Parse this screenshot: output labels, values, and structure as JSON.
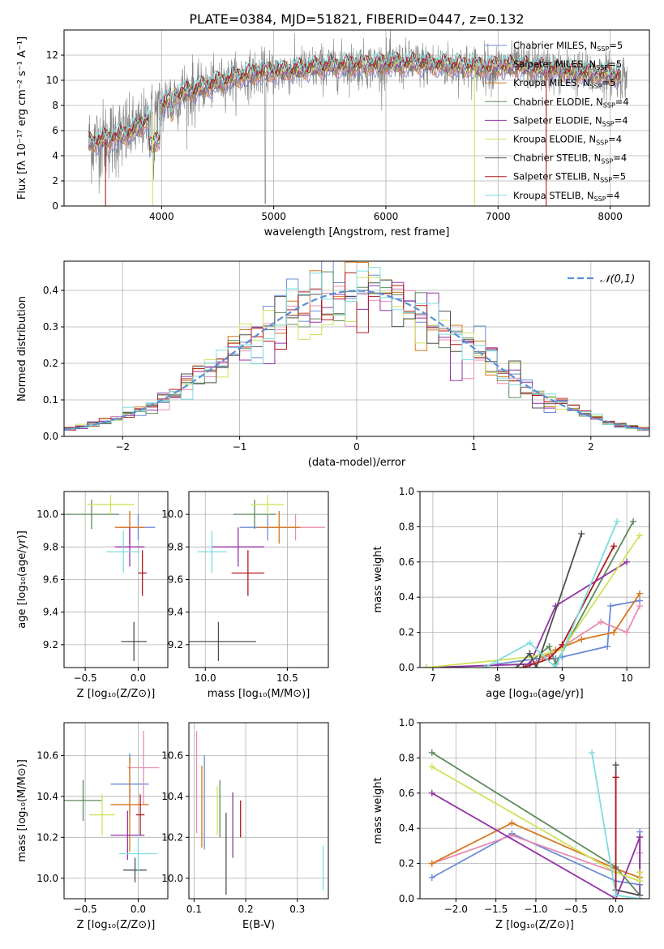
{
  "colors": {
    "chabrier_miles": "#6b8bd6",
    "salpeter_miles": "#e98cb4",
    "kroupa_miles": "#d6781e",
    "chabrier_elodie": "#5f8a5c",
    "salpeter_elodie": "#9433a8",
    "kroupa_elodie": "#cfe35a",
    "chabrier_stelib": "#505050",
    "salpeter_stelib": "#b3191e",
    "kroupa_stelib": "#7ddde0",
    "data": "#808080",
    "gauss": "#5b8fd6"
  },
  "chart_data": [
    {
      "id": "spectrum",
      "type": "line",
      "title": "PLATE=0384, MJD=51821, FIBERID=0447, z=0.132",
      "xlabel": "wavelength [Angstrom, rest frame]",
      "ylabel": "Flux [fλ 10⁻¹⁷ erg cm⁻² s⁻¹ A⁻¹]",
      "xlim": [
        3130,
        8350
      ],
      "ylim": [
        0,
        14
      ],
      "xticks": [
        "4000",
        "5000",
        "6000",
        "7000",
        "8000"
      ],
      "yticks": [
        "0",
        "2",
        "4",
        "6",
        "8",
        "10",
        "12"
      ],
      "legend_position": "right",
      "legend": [
        "Chabrier MILES, N_SSP=5",
        "Salpeter MILES, N_SSP=5",
        "Kroupa MILES, N_SSP=5",
        "Chabrier ELODIE, N_SSP=4",
        "Salpeter ELODIE, N_SSP=4",
        "Kroupa ELODIE, N_SSP=4",
        "Chabrier STELIB, N_SSP=4",
        "Salpeter STELIB, N_SSP=5",
        "Kroupa STELIB, N_SSP=4"
      ],
      "continuum": [
        [
          3350,
          5.0
        ],
        [
          3500,
          5.3
        ],
        [
          3650,
          5.6
        ],
        [
          3800,
          6.2
        ],
        [
          3950,
          7.6
        ],
        [
          4100,
          8.7
        ],
        [
          4300,
          9.2
        ],
        [
          4500,
          9.8
        ],
        [
          4700,
          10.3
        ],
        [
          4900,
          10.6
        ],
        [
          5100,
          10.7
        ],
        [
          5300,
          10.9
        ],
        [
          5500,
          11.1
        ],
        [
          5700,
          11.2
        ],
        [
          5900,
          11.2
        ],
        [
          6100,
          11.3
        ],
        [
          6300,
          11.3
        ],
        [
          6500,
          11.2
        ],
        [
          6700,
          11.1
        ],
        [
          6900,
          11.0
        ],
        [
          7100,
          11.1
        ],
        [
          7300,
          11.0
        ],
        [
          7500,
          10.8
        ],
        [
          7700,
          10.6
        ],
        [
          7900,
          10.5
        ],
        [
          8100,
          10.3
        ]
      ]
    },
    {
      "id": "residuals",
      "type": "bar",
      "xlabel": "(data-model)/error",
      "ylabel": "Normed distribution",
      "xlim": [
        -2.5,
        2.5
      ],
      "ylim": [
        0,
        0.48
      ],
      "xticks": [
        "−2",
        "−1",
        "0",
        "1",
        "2"
      ],
      "yticks": [
        "0.0",
        "0.1",
        "0.2",
        "0.3",
        "0.4"
      ],
      "legend": [
        "𝒩(0,1)"
      ],
      "legend_position": "top-right",
      "bin_width": 0.1
    },
    {
      "id": "age_vs_Z",
      "type": "scatter",
      "xlabel": "Z [log₁₀(Z/Z⊙)]",
      "ylabel": "age [log₁₀(age/yr)]",
      "xlim": [
        -0.7,
        0.28
      ],
      "ylim": [
        9.06,
        10.14
      ],
      "xticks": [
        "−0.5",
        "0.0"
      ],
      "yticks": [
        "9.2",
        "9.4",
        "9.6",
        "9.8",
        "10.0"
      ],
      "points": [
        {
          "x": -0.0,
          "y": 9.92,
          "xe": 0.16,
          "ye": 0.08
        },
        {
          "x": -0.08,
          "y": 9.92,
          "xe": 0.1,
          "ye": 0.1
        },
        {
          "x": -0.08,
          "y": 9.92,
          "xe": 0.14,
          "ye": 0.1
        },
        {
          "x": -0.44,
          "y": 10.0,
          "xe": 0.26,
          "ye": 0.09
        },
        {
          "x": -0.08,
          "y": 9.8,
          "xe": 0.14,
          "ye": 0.12
        },
        {
          "x": -0.26,
          "y": 10.06,
          "xe": 0.22,
          "ye": 0.06
        },
        {
          "x": -0.04,
          "y": 9.22,
          "xe": 0.12,
          "ye": 0.12
        },
        {
          "x": 0.04,
          "y": 9.64,
          "xe": 0.04,
          "ye": 0.14
        },
        {
          "x": -0.14,
          "y": 9.77,
          "xe": 0.16,
          "ye": 0.13
        }
      ]
    },
    {
      "id": "age_vs_mass",
      "type": "scatter",
      "xlabel": "mass [log₁₀(M/M⊙)]",
      "ylabel": "",
      "xlim": [
        9.9,
        10.75
      ],
      "ylim": [
        9.06,
        10.14
      ],
      "xticks": [
        "10.0",
        "10.5"
      ],
      "yticks": [
        "9.2",
        "9.4",
        "9.6",
        "9.8",
        "10.0"
      ],
      "points": [
        {
          "x": 10.38,
          "y": 9.92,
          "xe": 0.17,
          "ye": 0.08
        },
        {
          "x": 10.55,
          "y": 9.92,
          "xe": 0.18,
          "ye": 0.08
        },
        {
          "x": 10.45,
          "y": 9.92,
          "xe": 0.13,
          "ye": 0.1
        },
        {
          "x": 10.3,
          "y": 10.0,
          "xe": 0.13,
          "ye": 0.09
        },
        {
          "x": 10.2,
          "y": 9.8,
          "xe": 0.16,
          "ye": 0.12
        },
        {
          "x": 10.38,
          "y": 10.06,
          "xe": 0.1,
          "ye": 0.06
        },
        {
          "x": 10.08,
          "y": 9.22,
          "xe": 0.23,
          "ye": 0.12
        },
        {
          "x": 10.26,
          "y": 9.64,
          "xe": 0.1,
          "ye": 0.14
        },
        {
          "x": 10.04,
          "y": 9.77,
          "xe": 0.09,
          "ye": 0.13
        }
      ]
    },
    {
      "id": "cumulative_age",
      "type": "line",
      "xlabel": "age [log₁₀(age/yr)]",
      "ylabel": "mass weight",
      "xlim": [
        6.8,
        10.35
      ],
      "ylim": [
        0,
        1
      ],
      "xticks": [
        "7",
        "8",
        "9",
        "10"
      ],
      "yticks": [
        "0.0",
        "0.2",
        "0.4",
        "0.6",
        "0.8",
        "1.0"
      ],
      "series": [
        {
          "x": [
            8.0,
            8.6,
            8.9,
            9.0,
            9.7,
            9.75,
            10.2
          ],
          "y": [
            0.02,
            0.05,
            0.05,
            0.06,
            0.12,
            0.35,
            0.38
          ]
        },
        {
          "x": [
            8.5,
            8.7,
            8.8,
            9.6,
            10.0,
            10.2
          ],
          "y": [
            0.02,
            0.05,
            0.07,
            0.26,
            0.2,
            0.35
          ]
        },
        {
          "x": [
            8.7,
            8.9,
            9.3,
            9.8,
            10.2
          ],
          "y": [
            0.06,
            0.1,
            0.16,
            0.2,
            0.42
          ]
        },
        {
          "x": [
            8.4,
            8.8,
            8.9,
            10.1
          ],
          "y": [
            0.0,
            0.12,
            0.02,
            0.83
          ]
        },
        {
          "x": [
            6.9,
            8.5,
            8.9,
            10.0
          ],
          "y": [
            0.0,
            0.02,
            0.35,
            0.6
          ]
        },
        {
          "x": [
            6.9,
            8.5,
            9.0,
            10.2
          ],
          "y": [
            0.0,
            0.06,
            0.1,
            0.75
          ]
        },
        {
          "x": [
            8.3,
            8.5,
            8.6,
            9.3
          ],
          "y": [
            0.0,
            0.08,
            0.0,
            0.76
          ]
        },
        {
          "x": [
            8.4,
            8.8,
            9.0,
            9.8
          ],
          "y": [
            0.0,
            0.05,
            0.13,
            0.69
          ]
        },
        {
          "x": [
            7.8,
            8.5,
            8.9,
            9.85
          ],
          "y": [
            0.0,
            0.14,
            0.0,
            0.83
          ]
        }
      ]
    },
    {
      "id": "mass_vs_Z",
      "type": "scatter",
      "xlabel": "Z [log₁₀(Z/Z⊙)]",
      "ylabel": "mass [log₁₀(M/M⊙)]",
      "xlim": [
        -0.7,
        0.28
      ],
      "ylim": [
        9.9,
        10.76
      ],
      "xticks": [
        "−0.5",
        "0.0"
      ],
      "yticks": [
        "10.0",
        "10.2",
        "10.4",
        "10.6"
      ],
      "points": [
        {
          "x": -0.08,
          "y": 10.46,
          "xe": 0.18,
          "ye": 0.15
        },
        {
          "x": 0.05,
          "y": 10.54,
          "xe": 0.15,
          "ye": 0.18
        },
        {
          "x": -0.08,
          "y": 10.36,
          "xe": 0.18,
          "ye": 0.23
        },
        {
          "x": -0.52,
          "y": 10.38,
          "xe": 0.18,
          "ye": 0.1
        },
        {
          "x": -0.1,
          "y": 10.21,
          "xe": 0.16,
          "ye": 0.12
        },
        {
          "x": -0.34,
          "y": 10.31,
          "xe": 0.12,
          "ye": 0.1
        },
        {
          "x": -0.03,
          "y": 10.04,
          "xe": 0.11,
          "ye": 0.06
        },
        {
          "x": 0.02,
          "y": 10.31,
          "xe": 0.04,
          "ye": 0.1
        },
        {
          "x": 0.0,
          "y": 10.12,
          "xe": 0.18,
          "ye": 0.1
        }
      ]
    },
    {
      "id": "mass_vs_ebv",
      "type": "scatter",
      "xlabel": "E(B-V)",
      "ylabel": "",
      "xlim": [
        0.09,
        0.36
      ],
      "ylim": [
        9.9,
        10.76
      ],
      "xticks": [
        "0.1",
        "0.2",
        "0.3"
      ],
      "yticks": [
        "10.0",
        "10.2",
        "10.4",
        "10.6"
      ],
      "points": [
        {
          "x": 0.12,
          "y": 10.37,
          "xe": 0.0,
          "ye": 0.23
        },
        {
          "x": 0.105,
          "y": 10.47,
          "xe": 0.0,
          "ye": 0.25
        },
        {
          "x": 0.115,
          "y": 10.35,
          "xe": 0.0,
          "ye": 0.2
        },
        {
          "x": 0.15,
          "y": 10.34,
          "xe": 0.0,
          "ye": 0.14
        },
        {
          "x": 0.175,
          "y": 10.26,
          "xe": 0.0,
          "ye": 0.16
        },
        {
          "x": 0.145,
          "y": 10.33,
          "xe": 0.0,
          "ye": 0.12
        },
        {
          "x": 0.162,
          "y": 10.12,
          "xe": 0.0,
          "ye": 0.2
        },
        {
          "x": 0.19,
          "y": 10.29,
          "xe": 0.0,
          "ye": 0.09
        },
        {
          "x": 0.35,
          "y": 10.05,
          "xe": 0.0,
          "ye": 0.11
        }
      ]
    },
    {
      "id": "cumulative_Z",
      "type": "line",
      "xlabel": "Z [log₁₀(Z/Z⊙)]",
      "ylabel": "mass weight",
      "xlim": [
        -2.45,
        0.42
      ],
      "ylim": [
        0,
        1
      ],
      "xticks": [
        "−2.0",
        "−1.5",
        "−1.0",
        "−0.5",
        "0.0"
      ],
      "yticks": [
        "0.0",
        "0.2",
        "0.4",
        "0.6",
        "0.8",
        "1.0"
      ],
      "series": [
        {
          "x": [
            -2.3,
            -1.3,
            0.0,
            0.3,
            0.3
          ],
          "y": [
            0.12,
            0.37,
            0.1,
            0.08,
            0.38
          ]
        },
        {
          "x": [
            -2.3,
            -1.3,
            0.0,
            0.3,
            0.3
          ],
          "y": [
            0.2,
            0.36,
            0.15,
            0.1,
            0.26
          ]
        },
        {
          "x": [
            -2.3,
            -1.3,
            0.0,
            0.3,
            0.3
          ],
          "y": [
            0.2,
            0.43,
            0.17,
            0.12,
            0.15
          ]
        },
        {
          "x": [
            -2.3,
            0.0,
            0.3,
            0.3
          ],
          "y": [
            0.83,
            0.18,
            0.02,
            0.35
          ]
        },
        {
          "x": [
            -2.3,
            0.0,
            0.3,
            0.3
          ],
          "y": [
            0.6,
            0.0,
            0.35,
            0.0
          ]
        },
        {
          "x": [
            -2.3,
            0.0,
            0.3,
            0.3
          ],
          "y": [
            0.75,
            0.15,
            0.1,
            0.15
          ]
        },
        {
          "x": [
            0.0,
            0.0,
            0.3
          ],
          "y": [
            0.76,
            0.05,
            0.02
          ]
        },
        {
          "x": [
            0.0,
            0.0,
            0.3
          ],
          "y": [
            0.69,
            0.0,
            0.0
          ]
        },
        {
          "x": [
            -0.3,
            0.0,
            0.3
          ],
          "y": [
            0.83,
            0.02,
            0.0
          ]
        }
      ]
    }
  ]
}
